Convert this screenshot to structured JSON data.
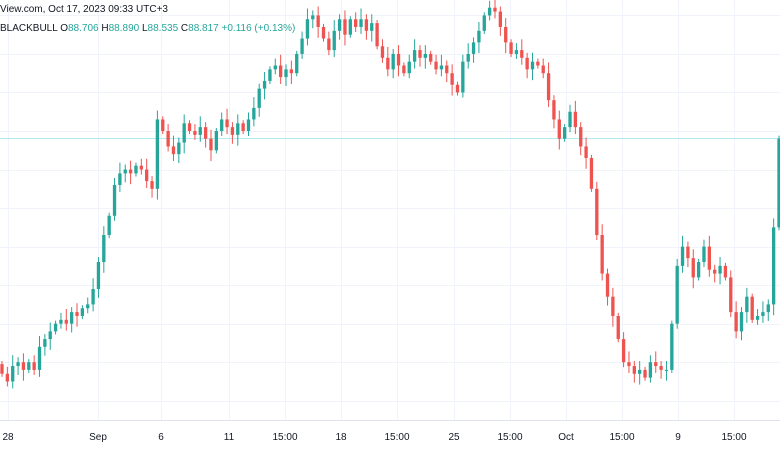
{
  "header": {
    "source_line": "View.com, Oct 17, 2023 09:33 UTC+3",
    "symbol": "BLACKBULL",
    "open_label": "O",
    "open": "88.706",
    "high_label": "H",
    "high": "88.890",
    "low_label": "L",
    "low": "88.535",
    "close_label": "C",
    "close": "88.817",
    "change": "+0.116 (+0.13%)"
  },
  "colors": {
    "up": "#26a69a",
    "down": "#ef5350",
    "grid": "#f0f3fa",
    "price_line": "#b2ebf2",
    "text": "#131722"
  },
  "chart_data": {
    "type": "candlestick",
    "title": "",
    "xlabel": "",
    "ylabel": "",
    "grid": true,
    "current_price": 88.817,
    "x_ticks": [
      "28",
      "Sep",
      "6",
      "11",
      "15:00",
      "18",
      "15:00",
      "25",
      "15:00",
      "Oct",
      "15:00",
      "9",
      "15:00"
    ],
    "y_range": [
      81.5,
      92.4
    ],
    "closes": [
      82.7,
      82.5,
      82.9,
      83.0,
      82.8,
      83.0,
      82.8,
      83.4,
      83.6,
      83.8,
      84.0,
      84.1,
      84.0,
      84.3,
      84.2,
      84.4,
      84.5,
      84.9,
      85.6,
      86.3,
      86.8,
      87.6,
      87.9,
      88.0,
      87.9,
      88.1,
      88.0,
      87.7,
      87.5,
      89.3,
      89.0,
      88.6,
      88.4,
      88.7,
      89.2,
      89.0,
      88.9,
      89.1,
      88.8,
      88.5,
      89.0,
      89.3,
      89.1,
      88.9,
      89.2,
      89.0,
      89.3,
      89.6,
      90.1,
      90.3,
      90.6,
      90.7,
      90.4,
      90.6,
      90.5,
      91.0,
      91.4,
      91.9,
      92.0,
      91.7,
      91.4,
      91.1,
      91.6,
      91.9,
      91.5,
      91.9,
      91.7,
      91.9,
      91.6,
      91.8,
      91.2,
      90.9,
      90.6,
      91.0,
      90.7,
      90.5,
      90.8,
      91.1,
      90.9,
      91.0,
      90.8,
      90.6,
      90.7,
      90.5,
      90.2,
      90.0,
      90.8,
      91.0,
      91.3,
      91.6,
      92.0,
      92.2,
      92.1,
      91.7,
      91.3,
      91.0,
      91.1,
      90.9,
      90.6,
      90.8,
      90.7,
      90.5,
      89.8,
      89.3,
      88.8,
      89.1,
      89.5,
      89.1,
      88.6,
      88.3,
      87.5,
      86.3,
      85.3,
      84.7,
      84.2,
      83.6,
      83.0,
      82.9,
      82.7,
      82.8,
      82.6,
      83.0,
      82.9,
      82.8,
      82.8,
      84.0,
      85.5,
      86.0,
      85.7,
      85.2,
      85.6,
      86.0,
      85.4,
      85.3,
      85.5,
      85.2,
      84.3,
      83.8,
      84.3,
      84.7,
      84.1,
      84.2,
      84.3,
      84.5,
      86.5,
      88.8
    ]
  }
}
